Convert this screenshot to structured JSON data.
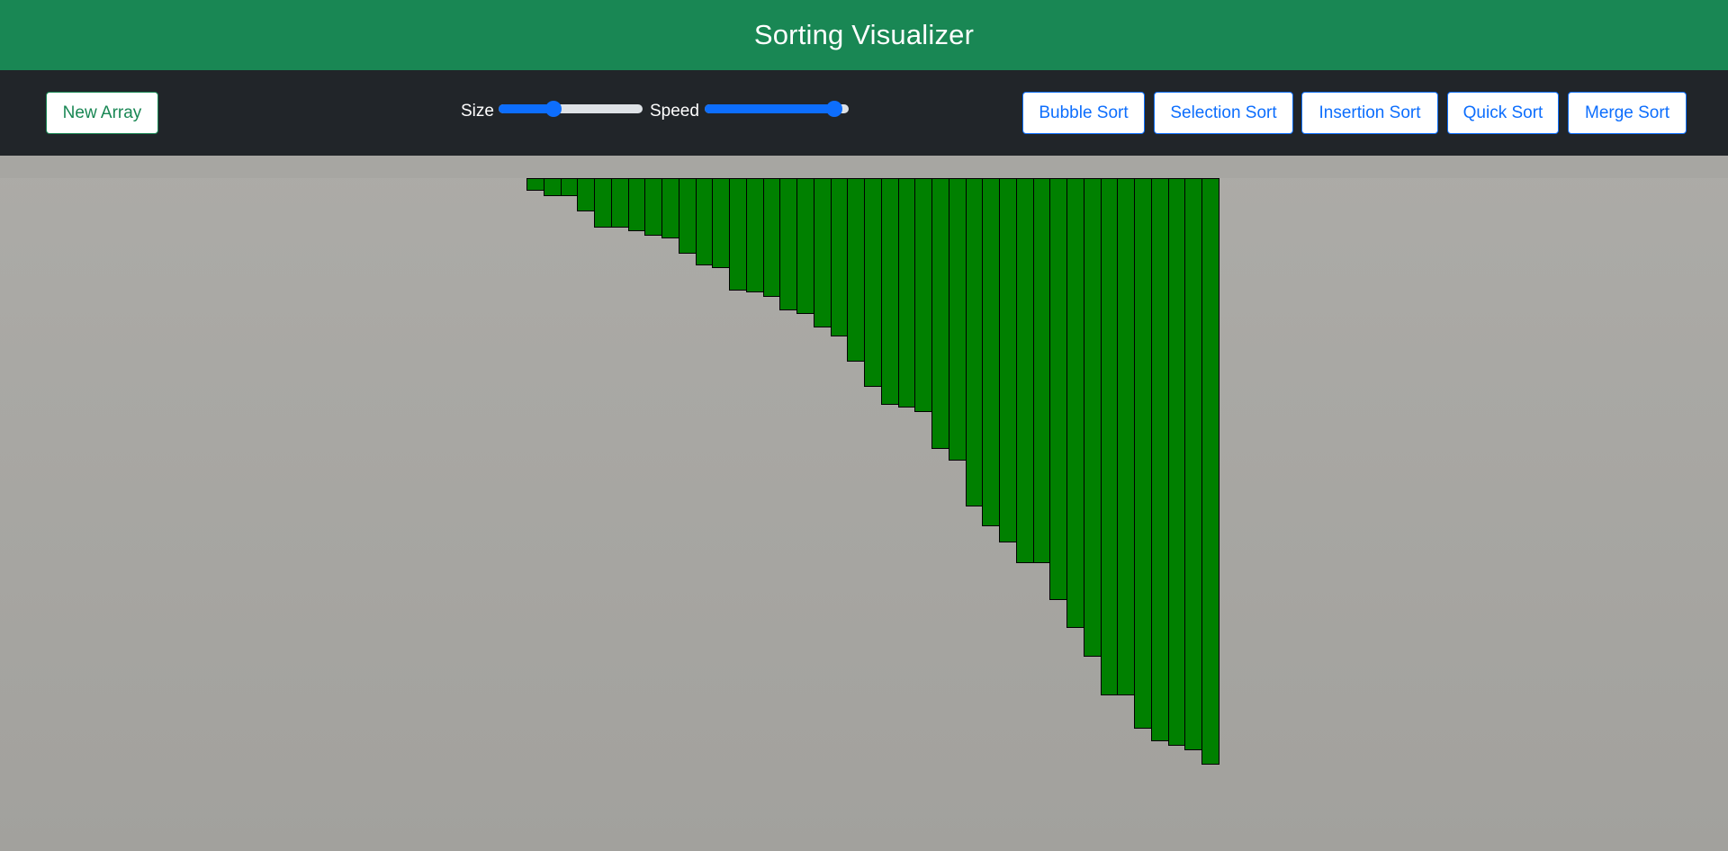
{
  "header": {
    "title": "Sorting Visualizer"
  },
  "toolbar": {
    "new_array_label": "New Array",
    "size_label": "Size",
    "speed_label": "Speed",
    "size_value": 0.38,
    "speed_value": 0.9,
    "algorithms": [
      "Bubble Sort",
      "Selection Sort",
      "Insertion Sort",
      "Quick Sort",
      "Merge Sort"
    ]
  },
  "colors": {
    "header_bg": "#198754",
    "toolbar_bg": "#212529",
    "accent_blue": "#0d6efd",
    "accent_green": "#198754",
    "bar_fill": "#008000",
    "bar_border": "#000000",
    "canvas_bg": "#a8a7a3"
  },
  "array": {
    "values": [
      14,
      20,
      20,
      37,
      55,
      55,
      59,
      64,
      67,
      84,
      97,
      100,
      125,
      127,
      132,
      147,
      151,
      166,
      176,
      204,
      232,
      252,
      255,
      260,
      301,
      314,
      365,
      387,
      405,
      428,
      428,
      469,
      500,
      532,
      575,
      575,
      612,
      626,
      631,
      636,
      652
    ]
  }
}
